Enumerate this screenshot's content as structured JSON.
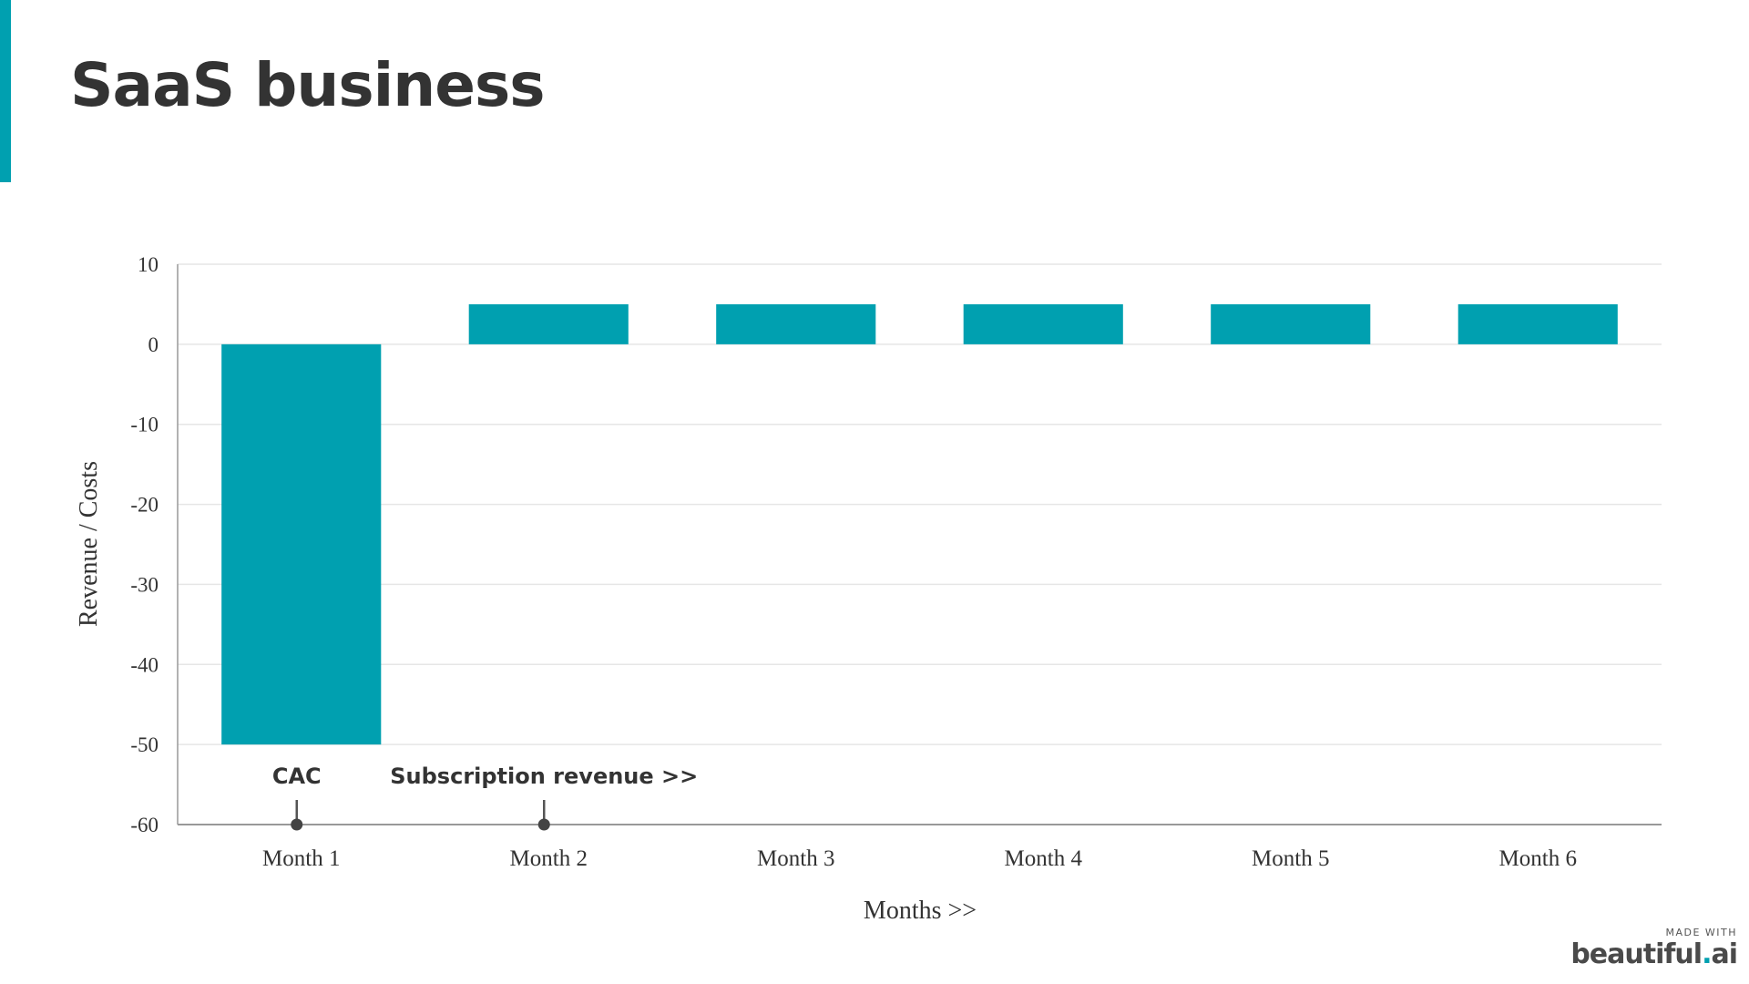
{
  "slide": {
    "title": "SaaS business"
  },
  "colors": {
    "accent": "#00a0b0",
    "bar": "#00a0b0",
    "grid": "#e6e6e6",
    "axis": "#999999",
    "text": "#333333"
  },
  "chart_data": {
    "type": "bar",
    "categories": [
      "Month 1",
      "Month 2",
      "Month 3",
      "Month 4",
      "Month 5",
      "Month 6"
    ],
    "values": [
      -50,
      5,
      5,
      5,
      5,
      5
    ],
    "xlabel": "Months >>",
    "ylabel": "Revenue / Costs",
    "ylim": [
      -60,
      10
    ],
    "yticks": [
      10,
      0,
      -10,
      -20,
      -30,
      -40,
      -50,
      -60
    ],
    "grid": true,
    "annotations": [
      {
        "text": "CAC",
        "category": "Month 1"
      },
      {
        "text": "Subscription revenue >>",
        "category": "Month 2"
      }
    ]
  },
  "watermark": {
    "made_with": "MADE WITH",
    "brand_a": "beautiful",
    "brand_dot": ".",
    "brand_b": "ai"
  }
}
